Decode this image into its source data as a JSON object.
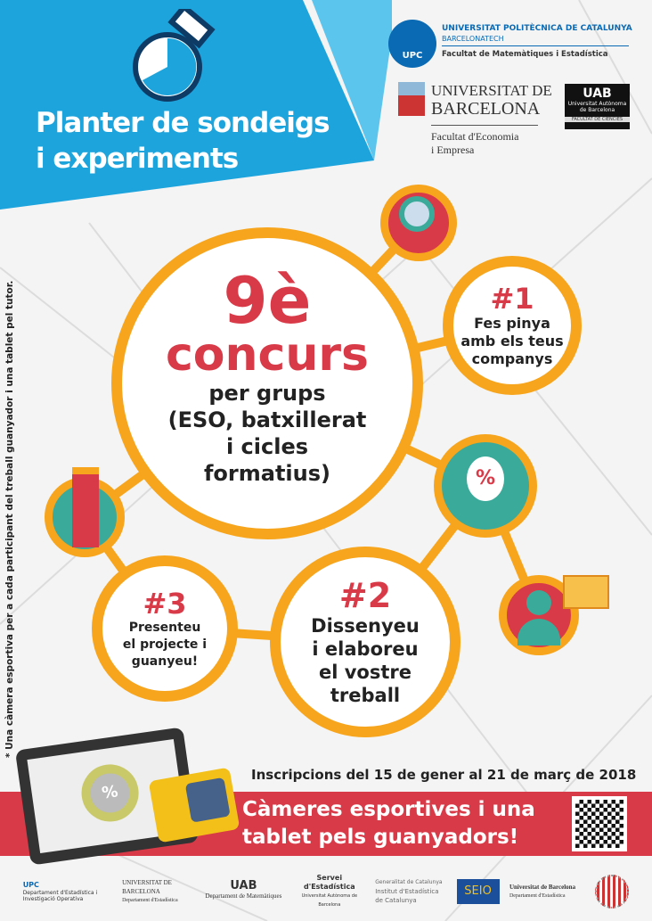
{
  "header": {
    "title_line1": "Planter de sondeigs",
    "title_line2": "i experiments"
  },
  "logos_top": {
    "upc": {
      "badge": "UPC",
      "name": "UNIVERSITAT POLITÈCNICA DE CATALUNYA",
      "sub": "BARCELONATECH",
      "faculty": "Facultat de Matemàtiques i Estadística"
    },
    "ub": {
      "name1": "UNIVERSITAT DE",
      "name2": "BARCELONA",
      "faculty1": "Facultat d'Economia",
      "faculty2": "i Empresa"
    },
    "uab": {
      "badge": "UAB",
      "name": "Universitat Autònoma de Barcelona",
      "faculty": "FACULTAT DE CIÈNCIES"
    }
  },
  "main_circle": {
    "number": "9è",
    "word": "concurs",
    "l1": "per grups",
    "l2": "(ESO, batxillerat",
    "l3": "i cicles",
    "l4": "formatius)"
  },
  "step1": {
    "num": "#1",
    "l1": "Fes pinya",
    "l2": "amb els teus",
    "l3": "companys"
  },
  "step2": {
    "num": "#2",
    "l1": "Dissenyeu",
    "l2": "i elaboreu",
    "l3": "el vostre",
    "l4": "treball"
  },
  "step3": {
    "num": "#3",
    "l1": "Presenteu",
    "l2": "el projecte i",
    "l3": "guanyeu!"
  },
  "side_note": "* Una càmera esportiva per a cada participant del treball guanyador i una tablet pel tutor.",
  "dates": "Inscripcions del 15 de gener al 21 de març de 2018",
  "prize": {
    "l1": "Càmeres esportives i una",
    "l2": "tablet pels guanyadors!"
  },
  "icons": {
    "bulb_symbol": "%",
    "tablet_symbol": "%"
  },
  "logos_bottom": [
    {
      "l1": "UPC",
      "l2": "Departament d'Estadística i Investigació Operativa"
    },
    {
      "l1": "UNIVERSITAT DE BARCELONA",
      "l2": "Departament d'Estadística"
    },
    {
      "l1": "UAB",
      "l2": "Departament de Matemàtiques"
    },
    {
      "l1": "Servei d'Estadística",
      "l2": "Universitat Autònoma de Barcelona"
    },
    {
      "l1": "Generalitat de Catalunya",
      "l2": "Institut d'Estadística de Catalunya"
    },
    {
      "l1": "SEIO",
      "l2": ""
    },
    {
      "l1": "Universitat de Barcelona",
      "l2": "Departament d'Estadística"
    },
    {
      "l1": "",
      "l2": ""
    }
  ],
  "colors": {
    "blue": "#1ea4dc",
    "orange": "#f7a51c",
    "red": "#d93a48",
    "teal": "#3aaa9a"
  }
}
